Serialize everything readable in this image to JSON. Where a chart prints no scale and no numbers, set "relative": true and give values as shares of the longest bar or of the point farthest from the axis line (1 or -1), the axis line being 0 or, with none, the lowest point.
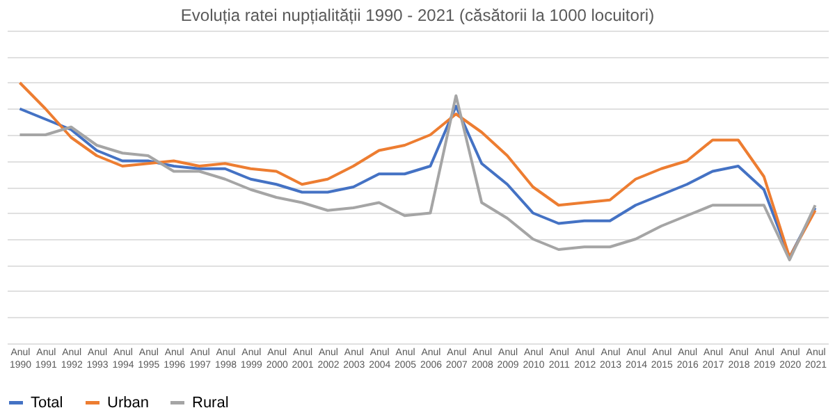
{
  "chart_data": {
    "type": "line",
    "title": "Evoluția ratei nupțialității 1990 - 2021 (căsătorii la 1000 locuitori)",
    "relative": true,
    "grid": "y",
    "legend": "bottom",
    "categories": [
      "Anul 1990",
      "Anul 1991",
      "Anul 1992",
      "Anul 1993",
      "Anul 1994",
      "Anul 1995",
      "Anul 1996",
      "Anul 1997",
      "Anul 1998",
      "Anul 1999",
      "Anul 2000",
      "Anul 2001",
      "Anul 2002",
      "Anul 2003",
      "Anul 2004",
      "Anul 2005",
      "Anul 2006",
      "Anul 2007",
      "Anul 2008",
      "Anul 2009",
      "Anul 2010",
      "Anul 2011",
      "Anul 2012",
      "Anul 2013",
      "Anul 2014",
      "Anul 2015",
      "Anul 2016",
      "Anul 2017",
      "Anul 2018",
      "Anul 2019",
      "Anul 2020",
      "Anul 2021"
    ],
    "series": [
      {
        "name": "Total",
        "color": "#4472c4",
        "values": [
          0.9,
          0.86,
          0.82,
          0.74,
          0.7,
          0.7,
          0.68,
          0.67,
          0.67,
          0.63,
          0.61,
          0.58,
          0.58,
          0.6,
          0.65,
          0.65,
          0.68,
          0.91,
          0.69,
          0.61,
          0.5,
          0.46,
          0.47,
          0.47,
          0.53,
          0.57,
          0.61,
          0.66,
          0.68,
          0.59,
          0.33,
          0.52
        ]
      },
      {
        "name": "Urban",
        "color": "#ed7d31",
        "values": [
          1.0,
          0.9,
          0.79,
          0.72,
          0.68,
          0.69,
          0.7,
          0.68,
          0.69,
          0.67,
          0.66,
          0.61,
          0.63,
          0.68,
          0.74,
          0.76,
          0.8,
          0.88,
          0.81,
          0.72,
          0.6,
          0.53,
          0.54,
          0.55,
          0.63,
          0.67,
          0.7,
          0.78,
          0.78,
          0.64,
          0.33,
          0.51
        ]
      },
      {
        "name": "Rural",
        "color": "#a5a5a5",
        "values": [
          0.8,
          0.8,
          0.83,
          0.76,
          0.73,
          0.72,
          0.66,
          0.66,
          0.63,
          0.59,
          0.56,
          0.54,
          0.51,
          0.52,
          0.54,
          0.49,
          0.5,
          0.95,
          0.54,
          0.48,
          0.4,
          0.36,
          0.37,
          0.37,
          0.4,
          0.45,
          0.49,
          0.53,
          0.53,
          0.53,
          0.32,
          0.53
        ]
      }
    ]
  }
}
